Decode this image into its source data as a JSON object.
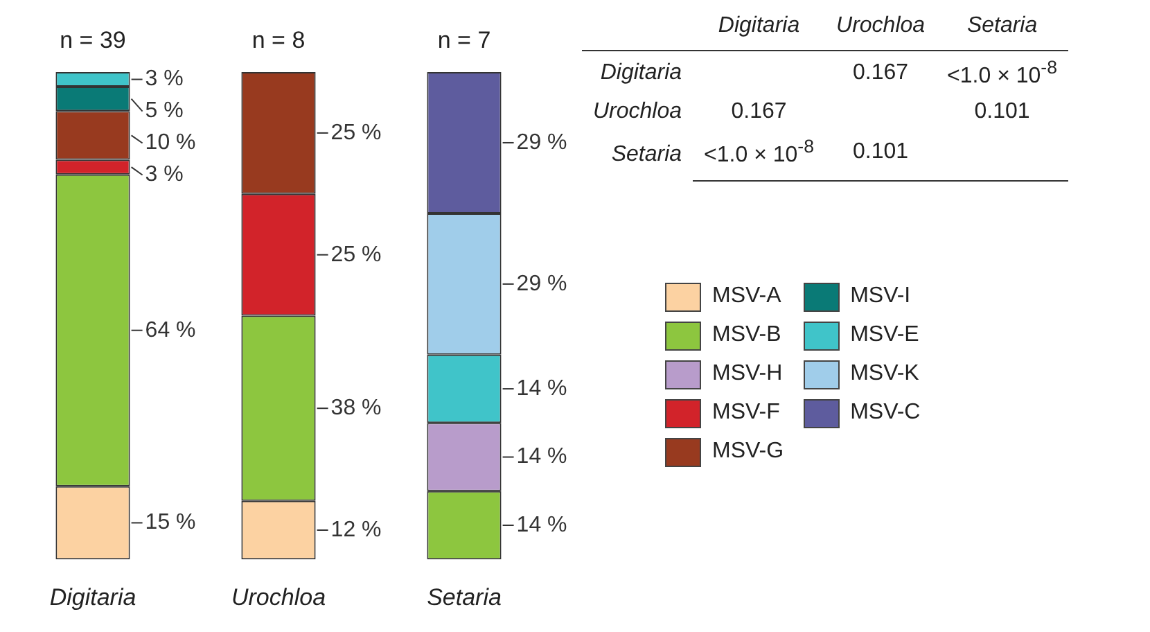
{
  "chart_data": [
    {
      "type": "bar",
      "stacked": true,
      "categories": [
        "Digitaria",
        "Urochloa",
        "Setaria"
      ],
      "ylim": [
        0,
        100
      ],
      "tick_labels": "x",
      "legend": "right",
      "annotations": [
        {
          "text": "n = 39",
          "x": "Digitaria",
          "y": 100
        },
        {
          "text": "n = 8",
          "x": "Urochloa",
          "y": 100
        },
        {
          "text": "n = 7",
          "x": "Setaria",
          "y": 100
        }
      ],
      "series": [
        {
          "name": "MSV-A",
          "color": "#fcd2a2",
          "values": [
            15,
            12,
            null
          ],
          "value_labels": [
            "15 %",
            "12 %",
            null
          ]
        },
        {
          "name": "MSV-B",
          "color": "#8dc63f",
          "values": [
            64,
            38,
            14
          ],
          "value_labels": [
            "64 %",
            "38 %",
            "14 %"
          ]
        },
        {
          "name": "MSV-H",
          "color": "#b89ccb",
          "values": [
            null,
            null,
            14
          ],
          "value_labels": [
            null,
            null,
            "14 %"
          ]
        },
        {
          "name": "MSV-F",
          "color": "#d2232a",
          "values": [
            3,
            25,
            null
          ],
          "value_labels": [
            "3 %",
            "25 %",
            null
          ]
        },
        {
          "name": "MSV-G",
          "color": "#983a1f",
          "values": [
            10,
            25,
            null
          ],
          "value_labels": [
            "10 %",
            "25 %",
            null
          ]
        },
        {
          "name": "MSV-I",
          "color": "#0a7a76",
          "values": [
            5,
            null,
            null
          ],
          "value_labels": [
            "5 %",
            null,
            null
          ]
        },
        {
          "name": "MSV-E",
          "color": "#40c4c9",
          "values": [
            3,
            null,
            14
          ],
          "value_labels": [
            "3 %",
            null,
            "14 %"
          ]
        },
        {
          "name": "MSV-K",
          "color": "#a0cdea",
          "values": [
            null,
            null,
            29
          ],
          "value_labels": [
            null,
            null,
            "29 %"
          ]
        },
        {
          "name": "MSV-C",
          "color": "#5e5c9e",
          "values": [
            null,
            null,
            29
          ],
          "value_labels": [
            null,
            null,
            "29 %"
          ]
        }
      ]
    },
    {
      "type": "other",
      "categories": [
        "Digitaria",
        "Urochloa",
        "Setaria"
      ],
      "y_categories": [
        "Digitaria",
        "Urochloa",
        "Setaria"
      ],
      "cell_labels": [
        [
          null,
          "0.167",
          "<1.0 × 10$^{-8}$"
        ],
        [
          "0.167",
          null,
          "0.101"
        ],
        [
          "<1.0 × 10$^{-8}$",
          "0.101",
          null
        ]
      ]
    }
  ]
}
